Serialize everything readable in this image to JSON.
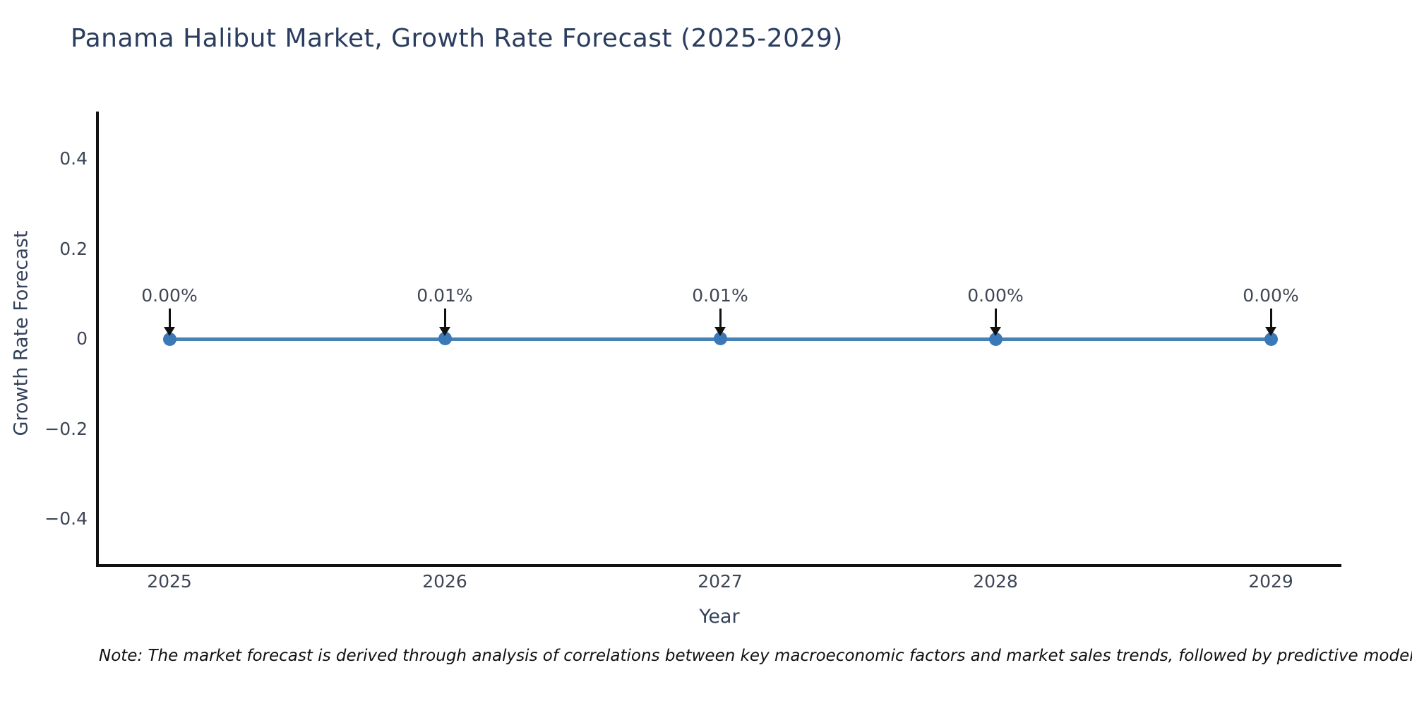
{
  "title": "Panama Halibut Market, Growth Rate Forecast (2025-2029)",
  "note": "Note: The market forecast is derived through analysis of correlations between key macroeconomic factors and market sales trends, followed by predictive modeling to project future sales.",
  "chart_data": {
    "type": "line",
    "title": "Panama Halibut Market, Growth Rate Forecast (2025-2029)",
    "xlabel": "Year",
    "ylabel": "Growth Rate Forecast",
    "categories": [
      "2025",
      "2026",
      "2027",
      "2028",
      "2029"
    ],
    "series": [
      {
        "name": "Growth Rate Forecast",
        "values": [
          0.0,
          0.0001,
          0.0001,
          0.0,
          0.0
        ],
        "point_labels": [
          "0.00%",
          "0.01%",
          "0.01%",
          "0.00%",
          "0.00%"
        ]
      }
    ],
    "ylim": [
      -0.5,
      0.5
    ],
    "ytick_values": [
      0.4,
      0.2,
      0,
      -0.2,
      -0.4
    ],
    "ytick_labels": [
      "0.4",
      "0.2",
      "0",
      "−0.2",
      "−0.4"
    ],
    "grid": false,
    "legend_position": "none",
    "annotations_have_arrows": true,
    "colors": {
      "background": "#ffffff",
      "line": "#4682b4",
      "marker": "#3a78b8",
      "axis": "#111111",
      "title_text": "#2b3d5f",
      "axis_title_text": "#35425c",
      "tick_text": "#3d4656",
      "annotation_text": "#3f4654",
      "arrow": "#111111"
    }
  }
}
